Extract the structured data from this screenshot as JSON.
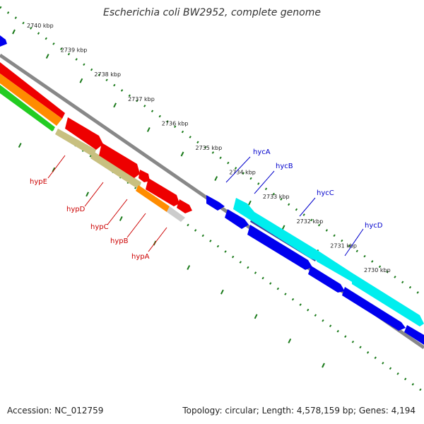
{
  "title": "Escherichia coli BW2952, complete genome",
  "footer": {
    "accession": "Accession: NC_012759",
    "summary": "Topology: circular; Length: 4,578,159 bp; Genes: 4,194"
  },
  "scale_labels": [
    "2740 kbp",
    "2739 kbp",
    "2738 kbp",
    "2737 kbp",
    "2736 kbp",
    "2735 kbp",
    "2734 kbp",
    "2733 kbp",
    "2732 kbp",
    "2731 kbp",
    "2730 kbp"
  ],
  "genes_forward": [
    "hycA",
    "hycB",
    "hycC",
    "hycD"
  ],
  "genes_reverse": [
    "hypE",
    "hypD",
    "hypC",
    "hypB",
    "hypA"
  ],
  "colors": {
    "forward_label": "#0000cc",
    "reverse_label": "#cc0000",
    "forward_cds": "#0000ee",
    "reverse_cds": "#ee0000",
    "forward_gene": "#00eeee",
    "reverse_gene_a": "#c8c080",
    "reverse_gene_b": "#ff8c00",
    "reverse_gene_c": "#22cc22",
    "backbone": "#888888",
    "ticks": "#1a7a1a"
  }
}
